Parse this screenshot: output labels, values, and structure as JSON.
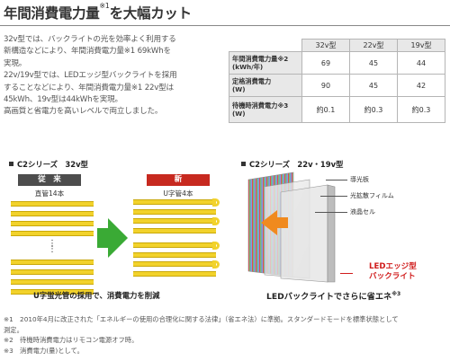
{
  "header": {
    "title": "年間消費電力量",
    "title_sup": "※1",
    "title_rest": "を大幅カット"
  },
  "intro": {
    "lines": [
      "32v型では、バックライトの光を効率よく利用する",
      "新構造などにより、年間消費電力量※1 69kWhを",
      "実現。",
      "22v/19v型では、LEDエッジ型バックライトを採用",
      "することなどにより、年間消費電力量※1 22v型は",
      "45kWh、19v型は44kWhを実現。",
      "高画質と省電力を高いレベルで両立しました。"
    ]
  },
  "spec_table": {
    "columns": [
      "32v型",
      "22v型",
      "19v型"
    ],
    "rows": [
      {
        "label": "年間消費電力量※2",
        "unit": "(kWh/年)",
        "values": [
          "69",
          "45",
          "44"
        ]
      },
      {
        "label": "定格消費電力",
        "unit": "(W)",
        "values": [
          "90",
          "45",
          "42"
        ]
      },
      {
        "label": "待機時消費電力※3",
        "unit": "(W)",
        "values": [
          "約0.1",
          "約0.3",
          "約0.3"
        ]
      }
    ]
  },
  "c2_32": {
    "section_title": "C2シリーズ　32v型",
    "old_tag": "従　来",
    "old_sub": "直管14本",
    "new_tag": "新",
    "new_sub": "U字管4本",
    "caption": "U字蛍光管の採用で、消費電力を削減"
  },
  "c2_22": {
    "section_title": "C2シリーズ　22v・19v型",
    "labels": [
      "導光板",
      "光拡散フィルム",
      "液晶セル"
    ],
    "led_label_line1": "LEDエッジ型",
    "led_label_line2": "バックライト",
    "caption": "LEDバックライトでさらに省エネ",
    "caption_sup": "※3"
  },
  "notes": {
    "lines": [
      "※1　2010年4月に改正された「エネルギーの使用の合理化に関する法律」（省エネ法）に準拠。スタンダードモードを標準状態として",
      "測定。",
      "※2　待機時消費電力はリモコン電源オフ時。",
      "※3　消費電力(量)として。"
    ]
  },
  "colors": {
    "tube_yellow": "#f2d22b",
    "arrow_green": "#3aaa35",
    "new_red": "#c7291f",
    "old_gray": "#4d4d4d",
    "led_red": "#d01b1b"
  }
}
